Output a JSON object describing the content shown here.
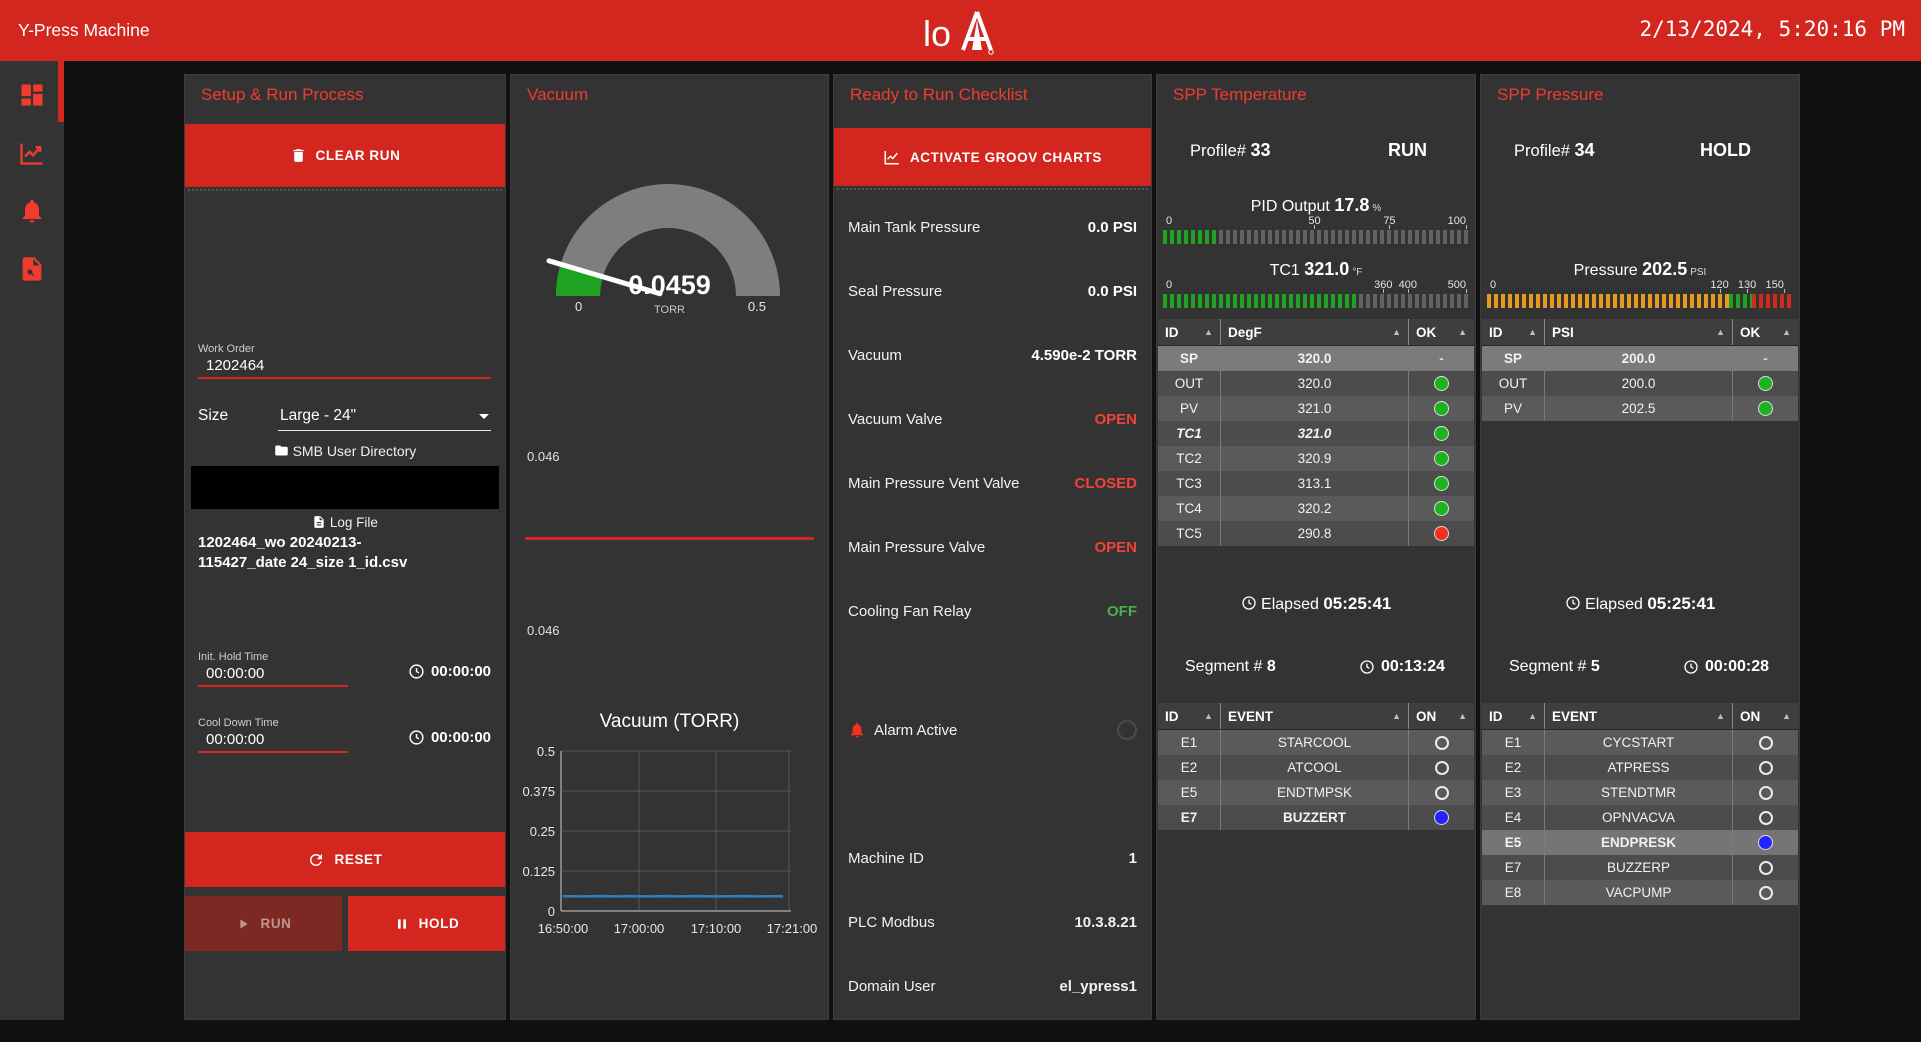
{
  "header": {
    "title": "Y-Press Machine",
    "clock": "2/13/2024, 5:20:16 PM",
    "logo_text": "lo"
  },
  "sidebar": {
    "items": [
      "dashboard",
      "charts",
      "alarms",
      "log-search"
    ]
  },
  "setup": {
    "title": "Setup & Run Process",
    "clear_run_label": "CLEAR RUN",
    "work_order": {
      "label": "Work Order",
      "value": "1202464"
    },
    "size": {
      "label": "Size",
      "value": "Large - 24\""
    },
    "smb_label": "SMB User Directory",
    "log_file_label": "Log File",
    "log_file_line1": "1202464_wo 20240213-",
    "log_file_line2": "115427_date 24_size 1_id.csv",
    "init_hold": {
      "label": "Init. Hold Time",
      "value": "00:00:00",
      "timer": "00:00:00"
    },
    "cool_down": {
      "label": "Cool Down Time",
      "value": "00:00:00",
      "timer": "00:00:00"
    },
    "reset_label": "RESET",
    "run_label": "RUN",
    "hold_label": "HOLD"
  },
  "vacuum": {
    "title": "Vacuum",
    "gauge": {
      "value": "0.0459",
      "unit": "TORR",
      "min": "0",
      "max": "0.5"
    },
    "level_value_top": "0.046",
    "level_value_bottom": "0.046",
    "chart_title": "Vacuum (TORR)"
  },
  "checklist": {
    "title": "Ready to Run Checklist",
    "activate_label": "ACTIVATE GROOV CHARTS",
    "rows": [
      {
        "label": "Main Tank Pressure",
        "value": "0.0 PSI",
        "color": "white"
      },
      {
        "label": "Seal Pressure",
        "value": "0.0 PSI",
        "color": "white"
      },
      {
        "label": "Vacuum",
        "value": "4.590e-2 TORR",
        "color": "white"
      },
      {
        "label": "Vacuum Valve",
        "value": "OPEN",
        "color": "red"
      },
      {
        "label": "Main Pressure Vent Valve",
        "value": "CLOSED",
        "color": "red"
      },
      {
        "label": "Main Pressure Valve",
        "value": "OPEN",
        "color": "red"
      },
      {
        "label": "Cooling Fan Relay",
        "value": "OFF",
        "color": "green"
      }
    ],
    "alarm_label": "Alarm Active",
    "info": [
      {
        "label": "Machine ID",
        "value": "1"
      },
      {
        "label": "PLC Modbus",
        "value": "10.3.8.21"
      },
      {
        "label": "Domain User",
        "value": "el_ypress1"
      }
    ]
  },
  "spp_temperature": {
    "title": "SPP Temperature",
    "profile_label": "Profile#",
    "profile_value": "33",
    "state": "RUN",
    "pid_bar": {
      "label": "PID Output",
      "value": "17.8",
      "unit": "%",
      "ticks": [
        {
          "label": "0",
          "pos": 1,
          "anchor": "start"
        },
        {
          "label": "50",
          "pos": 49.5,
          "anchor": "middle",
          "mark": true
        },
        {
          "label": "75",
          "pos": 74,
          "anchor": "middle",
          "mark": true
        },
        {
          "label": "100",
          "pos": 99,
          "anchor": "end",
          "mark": true
        }
      ],
      "zones": [
        {
          "start": 0,
          "end": 17.8,
          "color": "#1fa21f"
        }
      ]
    },
    "tc1_bar": {
      "label": "TC1",
      "value": "321.0",
      "unit": "°F",
      "ticks": [
        {
          "label": "0",
          "pos": 1,
          "anchor": "start"
        },
        {
          "label": "360",
          "pos": 72,
          "anchor": "middle",
          "mark": true
        },
        {
          "label": "400",
          "pos": 80,
          "anchor": "middle",
          "mark": true
        },
        {
          "label": "500",
          "pos": 99,
          "anchor": "end",
          "mark": true
        }
      ],
      "zones": [
        {
          "start": 0,
          "end": 64.2,
          "color": "#1fa21f"
        }
      ]
    },
    "table": {
      "headers": [
        "ID",
        "DegF",
        "OK"
      ],
      "rows": [
        {
          "id": "SP",
          "value": "320.0",
          "ok": "dash",
          "shade": "hl"
        },
        {
          "id": "OUT",
          "value": "320.0",
          "ok": "green",
          "shade": "dark"
        },
        {
          "id": "PV",
          "value": "321.0",
          "ok": "green",
          "shade": "light"
        },
        {
          "id": "TC1",
          "value": "321.0",
          "ok": "green",
          "shade": "dark",
          "style": "italic"
        },
        {
          "id": "TC2",
          "value": "320.9",
          "ok": "green",
          "shade": "light"
        },
        {
          "id": "TC3",
          "value": "313.1",
          "ok": "green",
          "shade": "dark"
        },
        {
          "id": "TC4",
          "value": "320.2",
          "ok": "green",
          "shade": "light"
        },
        {
          "id": "TC5",
          "value": "290.8",
          "ok": "red",
          "shade": "dark"
        }
      ]
    },
    "elapsed_label": "Elapsed",
    "elapsed_value": "05:25:41",
    "segment_label": "Segment #",
    "segment_value": "8",
    "segment_timer": "00:13:24",
    "events": {
      "headers": [
        "ID",
        "EVENT",
        "ON"
      ],
      "rows": [
        {
          "id": "E1",
          "event": "STARCOOL",
          "on": false,
          "shade": "light"
        },
        {
          "id": "E2",
          "event": "ATCOOL",
          "on": false,
          "shade": "dark"
        },
        {
          "id": "E5",
          "event": "ENDTMPSK",
          "on": false,
          "shade": "light"
        },
        {
          "id": "E7",
          "event": "BUZZERT",
          "on": true,
          "shade": "dark",
          "style": "bold"
        }
      ]
    }
  },
  "spp_pressure": {
    "title": "SPP Pressure",
    "profile_label": "Profile#",
    "profile_value": "34",
    "state": "HOLD",
    "pressure_bar": {
      "label": "Pressure",
      "value": "202.5",
      "unit": "PSI",
      "ticks": [
        {
          "label": "0",
          "pos": 1,
          "anchor": "start"
        },
        {
          "label": "120",
          "pos": 76,
          "anchor": "middle",
          "mark": true
        },
        {
          "label": "130",
          "pos": 85,
          "anchor": "middle",
          "mark": true
        },
        {
          "label": "150",
          "pos": 97,
          "anchor": "end",
          "mark": true
        }
      ],
      "zones": [
        {
          "start": 0,
          "end": 79,
          "color": "#e69b1e"
        },
        {
          "start": 79,
          "end": 86.5,
          "color": "#1fa21f"
        },
        {
          "start": 86.5,
          "end": 100,
          "color": "#cf2a1b"
        }
      ]
    },
    "table": {
      "headers": [
        "ID",
        "PSI",
        "OK"
      ],
      "rows": [
        {
          "id": "SP",
          "value": "200.0",
          "ok": "dash",
          "shade": "hl"
        },
        {
          "id": "OUT",
          "value": "200.0",
          "ok": "green",
          "shade": "dark"
        },
        {
          "id": "PV",
          "value": "202.5",
          "ok": "green",
          "shade": "light"
        }
      ]
    },
    "elapsed_label": "Elapsed",
    "elapsed_value": "05:25:41",
    "segment_label": "Segment #",
    "segment_value": "5",
    "segment_timer": "00:00:28",
    "events": {
      "headers": [
        "ID",
        "EVENT",
        "ON"
      ],
      "rows": [
        {
          "id": "E1",
          "event": "CYCSTART",
          "on": false,
          "shade": "light"
        },
        {
          "id": "E2",
          "event": "ATPRESS",
          "on": false,
          "shade": "dark"
        },
        {
          "id": "E3",
          "event": "STENDTMR",
          "on": false,
          "shade": "light"
        },
        {
          "id": "E4",
          "event": "OPNVACVA",
          "on": false,
          "shade": "dark"
        },
        {
          "id": "E5",
          "event": "ENDPRESK",
          "on": true,
          "shade": "hl2",
          "style": "bold"
        },
        {
          "id": "E7",
          "event": "BUZZERP",
          "on": false,
          "shade": "dark"
        },
        {
          "id": "E8",
          "event": "VACPUMP",
          "on": false,
          "shade": "light"
        }
      ]
    }
  },
  "chart_data": [
    {
      "type": "gauge",
      "title": "Vacuum",
      "value": 0.0459,
      "min": 0,
      "max": 0.5,
      "unit": "TORR",
      "zones": [
        {
          "from": 0,
          "to": 0.046,
          "color": "green"
        }
      ]
    },
    {
      "type": "line",
      "title": "Vacuum (TORR)",
      "xlabel": "",
      "ylabel": "",
      "ylim": [
        0,
        0.5
      ],
      "ytick_labels": [
        "0.5",
        "0.375",
        "0.25",
        "0.125",
        "0"
      ],
      "xtick_labels": [
        "16:50:00",
        "17:00:00",
        "17:10:00",
        "17:21:00"
      ],
      "grid": true,
      "legend": "none",
      "line_color": "#2e7fc2",
      "series": [
        {
          "name": "Vacuum",
          "values": [
            0.046,
            0.046,
            0.0455,
            0.046,
            0.0465,
            0.046,
            0.0455,
            0.0465,
            0.046,
            0.0455,
            0.046,
            0.0465,
            0.0455,
            0.046,
            0.0465,
            0.046,
            0.0455,
            0.046,
            0.046,
            0.0465,
            0.0455,
            0.046,
            0.046,
            0.046
          ]
        }
      ]
    },
    {
      "type": "bar-led",
      "title": "PID Output",
      "value": 17.8,
      "min": 0,
      "max": 100,
      "ticks": [
        0,
        50,
        75,
        100
      ]
    },
    {
      "type": "bar-led",
      "title": "TC1",
      "value": 321.0,
      "min": 0,
      "max": 500,
      "ticks": [
        0,
        360,
        400,
        500
      ]
    },
    {
      "type": "bar-led",
      "title": "Pressure",
      "value": 202.5,
      "min": 0,
      "max": 150,
      "ticks": [
        0,
        120,
        130,
        150
      ]
    }
  ]
}
